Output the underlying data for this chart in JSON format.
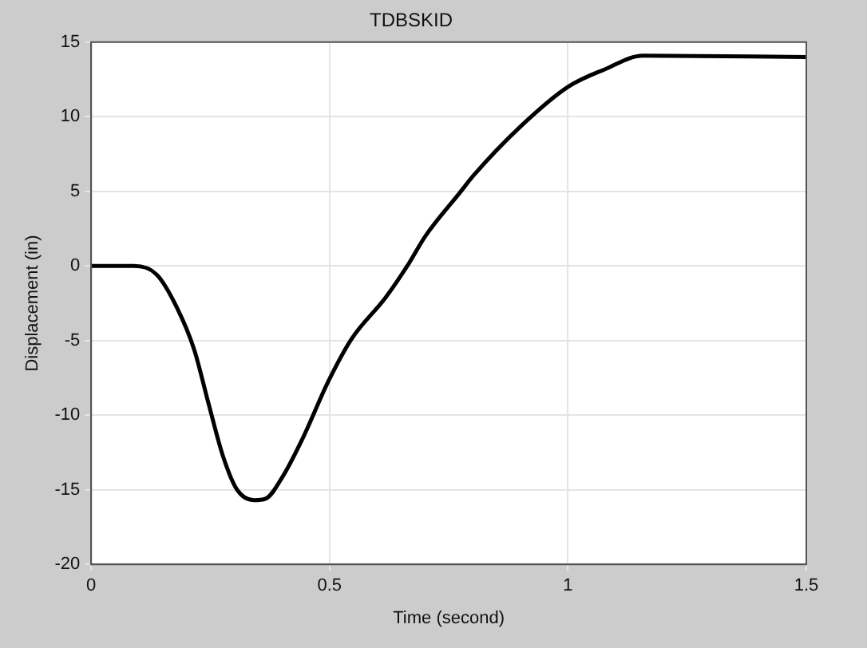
{
  "chart_data": {
    "type": "line",
    "title": "TDBSKID",
    "xlabel": "Time (second)",
    "ylabel": "Displacement (in)",
    "xlim": [
      0,
      1.5
    ],
    "xticks": [
      0,
      0.5,
      1,
      1.5
    ],
    "ylim": [
      -20,
      15
    ],
    "yticks": [
      -20,
      -15,
      -10,
      -5,
      0,
      5,
      10,
      15
    ],
    "grid": true,
    "legend": false,
    "marker": "none",
    "line_style": "solid",
    "series": [
      {
        "color": "#000000",
        "x": [
          0,
          0.09,
          0.138,
          0.18,
          0.216,
          0.246,
          0.276,
          0.306,
          0.342,
          0.366,
          0.402,
          0.443,
          0.498,
          0.546,
          0.618,
          0.665,
          0.701,
          0.773,
          0.803,
          0.899,
          1.0,
          1.079,
          1.157,
          1.5
        ],
        "values": [
          0,
          0,
          -0.6,
          -2.8,
          -5.6,
          -9.2,
          -12.7,
          -15,
          -15.7,
          -15.6,
          -14.1,
          -11.6,
          -7.7,
          -4.9,
          -2.1,
          0.1,
          2,
          4.9,
          6.1,
          9.3,
          12,
          13.2,
          14.1,
          14
        ]
      }
    ]
  }
}
